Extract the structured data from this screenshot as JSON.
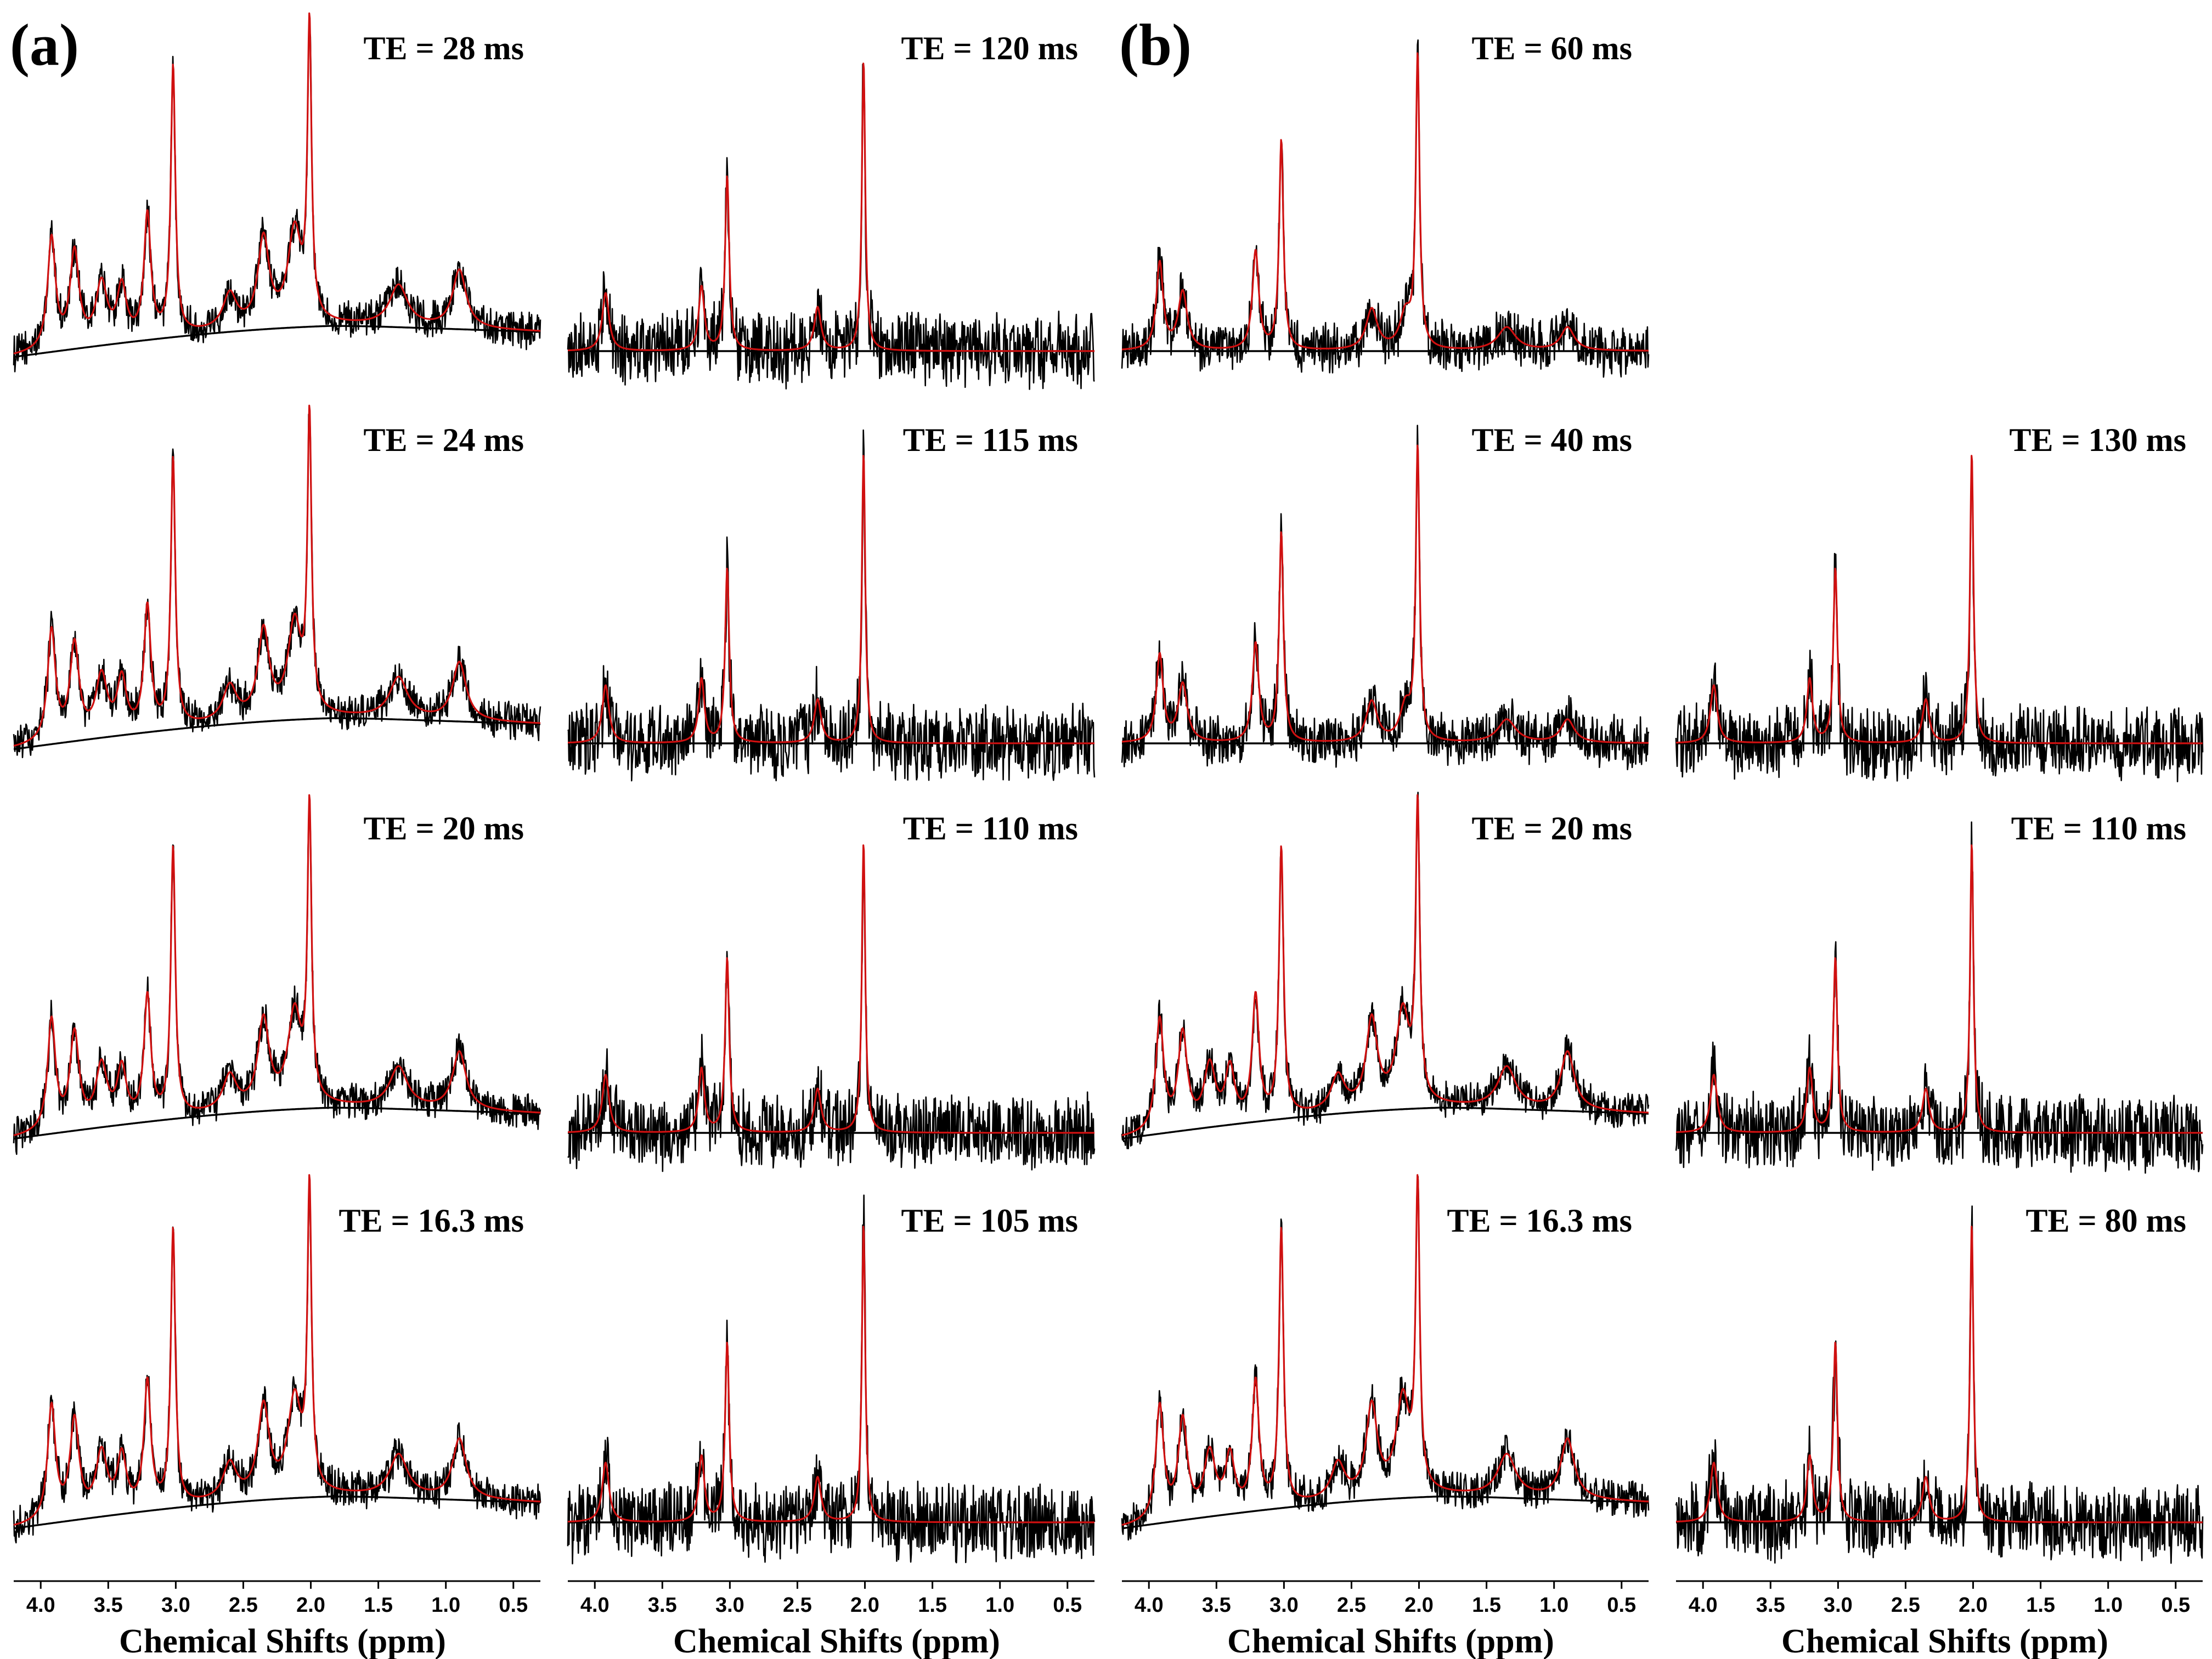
{
  "panels": [
    {
      "letter": "(a)"
    },
    {
      "letter": "(b)"
    }
  ],
  "axis": {
    "title": "Chemical Shifts (ppm)",
    "ticks": [
      "4.0",
      "3.5",
      "3.0",
      "2.5",
      "2.0",
      "1.5",
      "1.0",
      "0.5"
    ]
  },
  "chart_data": {
    "type": "line",
    "x_range_ppm": [
      4.2,
      0.3
    ],
    "x_reversed": true,
    "xlabel": "Chemical Shifts (ppm)",
    "grid": false,
    "series_style": {
      "spectrum": "#000000",
      "fit": "#d01010",
      "baseline": "#000000"
    },
    "subplots": [
      {
        "panel": "(a)",
        "column": 1,
        "row": 1,
        "label": "TE = 28 ms",
        "snr": "high",
        "baseline": "curved"
      },
      {
        "panel": "(a)",
        "column": 1,
        "row": 2,
        "label": "TE = 24 ms",
        "snr": "high",
        "baseline": "curved"
      },
      {
        "panel": "(a)",
        "column": 1,
        "row": 3,
        "label": "TE = 20 ms",
        "snr": "high",
        "baseline": "curved"
      },
      {
        "panel": "(a)",
        "column": 1,
        "row": 4,
        "label": "TE = 16.3 ms",
        "snr": "high",
        "baseline": "curved"
      },
      {
        "panel": "(a)",
        "column": 2,
        "row": 1,
        "label": "TE = 120 ms",
        "snr": "low",
        "baseline": "flat"
      },
      {
        "panel": "(a)",
        "column": 2,
        "row": 2,
        "label": "TE = 115 ms",
        "snr": "low",
        "baseline": "flat"
      },
      {
        "panel": "(a)",
        "column": 2,
        "row": 3,
        "label": "TE = 110 ms",
        "snr": "low",
        "baseline": "flat"
      },
      {
        "panel": "(a)",
        "column": 2,
        "row": 4,
        "label": "TE = 105 ms",
        "snr": "low",
        "baseline": "flat"
      },
      {
        "panel": "(b)",
        "column": 3,
        "row": 1,
        "label": "TE = 60 ms",
        "snr": "medium",
        "baseline": "flat"
      },
      {
        "panel": "(b)",
        "column": 3,
        "row": 2,
        "label": "TE = 40 ms",
        "snr": "medium",
        "baseline": "flat"
      },
      {
        "panel": "(b)",
        "column": 3,
        "row": 3,
        "label": "TE = 20 ms",
        "snr": "high",
        "baseline": "curved"
      },
      {
        "panel": "(b)",
        "column": 3,
        "row": 4,
        "label": "TE = 16.3 ms",
        "snr": "high",
        "baseline": "curved"
      },
      {
        "panel": "(b)",
        "column": 4,
        "row": 2,
        "label": "TE = 130 ms",
        "snr": "low",
        "baseline": "flat"
      },
      {
        "panel": "(b)",
        "column": 4,
        "row": 3,
        "label": "TE = 110 ms",
        "snr": "low",
        "baseline": "flat"
      },
      {
        "panel": "(b)",
        "column": 4,
        "row": 4,
        "label": "TE = 80 ms",
        "snr": "low",
        "baseline": "flat"
      }
    ],
    "peaks_ppm": {
      "high_snr": [
        {
          "x": 2.01,
          "h": 1.0,
          "w": 0.018
        },
        {
          "x": 3.02,
          "h": 0.92,
          "w": 0.02
        },
        {
          "x": 3.21,
          "h": 0.42,
          "w": 0.03
        },
        {
          "x": 3.92,
          "h": 0.38,
          "w": 0.035
        },
        {
          "x": 3.75,
          "h": 0.32,
          "w": 0.04
        },
        {
          "x": 3.55,
          "h": 0.2,
          "w": 0.05
        },
        {
          "x": 3.4,
          "h": 0.18,
          "w": 0.04
        },
        {
          "x": 2.35,
          "h": 0.3,
          "w": 0.05
        },
        {
          "x": 2.12,
          "h": 0.32,
          "w": 0.06
        },
        {
          "x": 2.6,
          "h": 0.12,
          "w": 0.06
        },
        {
          "x": 1.35,
          "h": 0.14,
          "w": 0.08
        },
        {
          "x": 0.9,
          "h": 0.2,
          "w": 0.06
        }
      ],
      "low_snr": [
        {
          "x": 2.01,
          "h": 1.0,
          "w": 0.015
        },
        {
          "x": 3.02,
          "h": 0.6,
          "w": 0.018
        },
        {
          "x": 3.21,
          "h": 0.22,
          "w": 0.025
        },
        {
          "x": 3.92,
          "h": 0.2,
          "w": 0.03
        },
        {
          "x": 2.35,
          "h": 0.15,
          "w": 0.03
        }
      ],
      "medium_snr": [
        {
          "x": 2.01,
          "h": 1.0,
          "w": 0.017
        },
        {
          "x": 3.02,
          "h": 0.72,
          "w": 0.019
        },
        {
          "x": 3.21,
          "h": 0.34,
          "w": 0.028
        },
        {
          "x": 3.92,
          "h": 0.3,
          "w": 0.03
        },
        {
          "x": 3.75,
          "h": 0.2,
          "w": 0.04
        },
        {
          "x": 2.35,
          "h": 0.14,
          "w": 0.05
        },
        {
          "x": 2.1,
          "h": 0.12,
          "w": 0.05
        },
        {
          "x": 1.35,
          "h": 0.08,
          "w": 0.08
        },
        {
          "x": 0.9,
          "h": 0.08,
          "w": 0.06
        }
      ]
    }
  }
}
